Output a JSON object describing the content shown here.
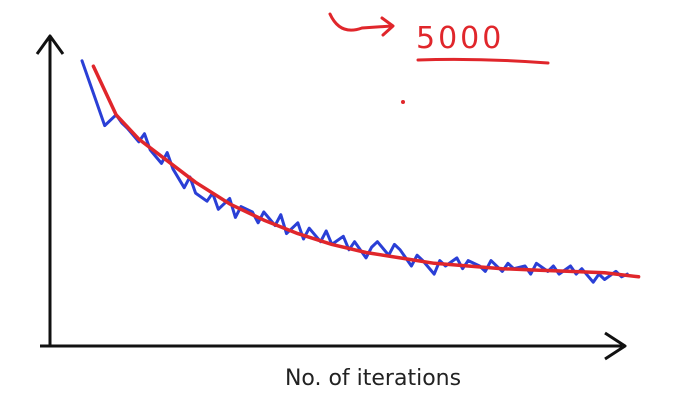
{
  "chart_data": {
    "type": "line",
    "title": "",
    "xlabel": "No. of iterations",
    "ylabel": "",
    "xlim": [
      0,
      100
    ],
    "ylim": [
      0,
      100
    ],
    "grid": false,
    "legend": "none",
    "annotation": "5000",
    "series": [
      {
        "color": "#2a3fd6",
        "x": [
          0,
          2,
          4,
          6,
          7,
          8,
          10,
          11,
          12,
          14,
          15,
          16,
          18,
          19,
          20,
          22,
          23,
          24,
          26,
          27,
          28,
          30,
          31,
          32,
          34,
          35,
          36,
          38,
          39,
          40,
          42,
          43,
          44,
          46,
          47,
          48,
          50,
          51,
          52,
          54,
          55,
          56,
          58,
          59,
          60,
          62,
          63,
          64,
          66,
          67,
          68,
          70,
          71,
          72,
          74,
          75,
          76,
          78,
          79,
          80,
          82,
          83,
          84,
          86,
          87,
          88,
          90,
          91,
          92,
          94,
          95,
          96
        ],
        "values": [
          96,
          84,
          72,
          76,
          73,
          71,
          66,
          69,
          63,
          58,
          62,
          56,
          49,
          53,
          47,
          44,
          47,
          41,
          45,
          38,
          42,
          40,
          36,
          40,
          35,
          39,
          32,
          36,
          30,
          34,
          29,
          33,
          28,
          31,
          26,
          29,
          23,
          27,
          29,
          24,
          28,
          26,
          20,
          24,
          22,
          17,
          22,
          20,
          23,
          19,
          22,
          20,
          18,
          22,
          18,
          21,
          19,
          20,
          17,
          21,
          18,
          20,
          17,
          20,
          17,
          19,
          14,
          17,
          15,
          18,
          16,
          17
        ]
      },
      {
        "color": "#e0262b",
        "x": [
          2,
          6,
          10,
          15,
          20,
          26,
          32,
          38,
          44,
          50,
          56,
          62,
          68,
          74,
          80,
          86,
          92,
          98
        ],
        "values": [
          94,
          76,
          67,
          59,
          51,
          43,
          37,
          32,
          28,
          25,
          23,
          21,
          20,
          19,
          18.5,
          18,
          17.5,
          16
        ]
      }
    ]
  }
}
